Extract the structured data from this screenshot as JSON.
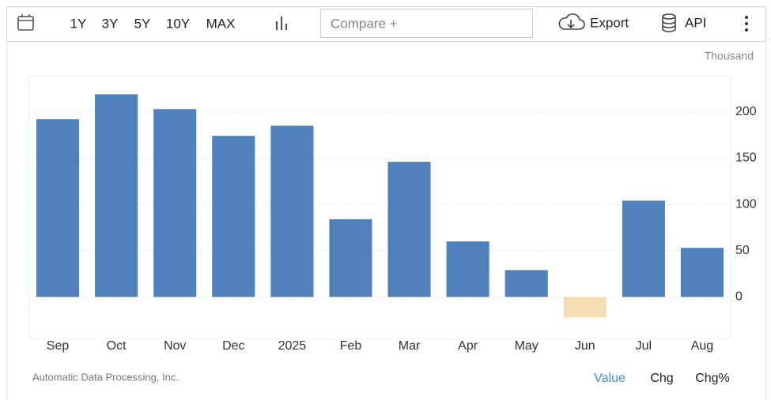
{
  "toolbar": {
    "ranges": [
      "1Y",
      "3Y",
      "5Y",
      "10Y",
      "MAX"
    ],
    "compare_placeholder": "Compare +",
    "export": "Export",
    "api": "API"
  },
  "chart_data": {
    "type": "bar",
    "unit_label": "Thousand",
    "categories": [
      "Sep",
      "Oct",
      "Nov",
      "Dec",
      "2025",
      "Feb",
      "Mar",
      "Apr",
      "May",
      "Jun",
      "Jul",
      "Aug"
    ],
    "values": [
      192,
      219,
      203,
      174,
      185,
      84,
      146,
      60,
      29,
      -22,
      104,
      53
    ],
    "color": "#4f81bd",
    "negative_color": "#f5deb3",
    "ylim": [
      -44,
      239
    ],
    "yticks": [
      0,
      50,
      100,
      150,
      200
    ],
    "grid": true
  },
  "footer": {
    "source": "Automatic Data Processing, Inc.",
    "tabs": [
      "Value",
      "Chg",
      "Chg%"
    ]
  }
}
